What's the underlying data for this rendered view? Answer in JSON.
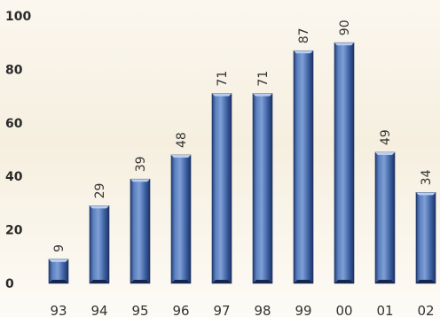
{
  "chart_data": {
    "type": "bar",
    "categories": [
      "93",
      "94",
      "95",
      "96",
      "97",
      "98",
      "99",
      "00",
      "01",
      "02"
    ],
    "values": [
      9,
      29,
      39,
      48,
      71,
      71,
      87,
      90,
      49,
      34
    ],
    "title": "",
    "xlabel": "",
    "ylabel": "",
    "ylim": [
      0,
      100
    ],
    "yticks": [
      0,
      20,
      40,
      60,
      80,
      100
    ],
    "grid": false,
    "data_labels": true,
    "bar_color": "#4a6fae",
    "bar_highlight": "#8aa8d8",
    "bar_shadow": "#1f3768"
  }
}
